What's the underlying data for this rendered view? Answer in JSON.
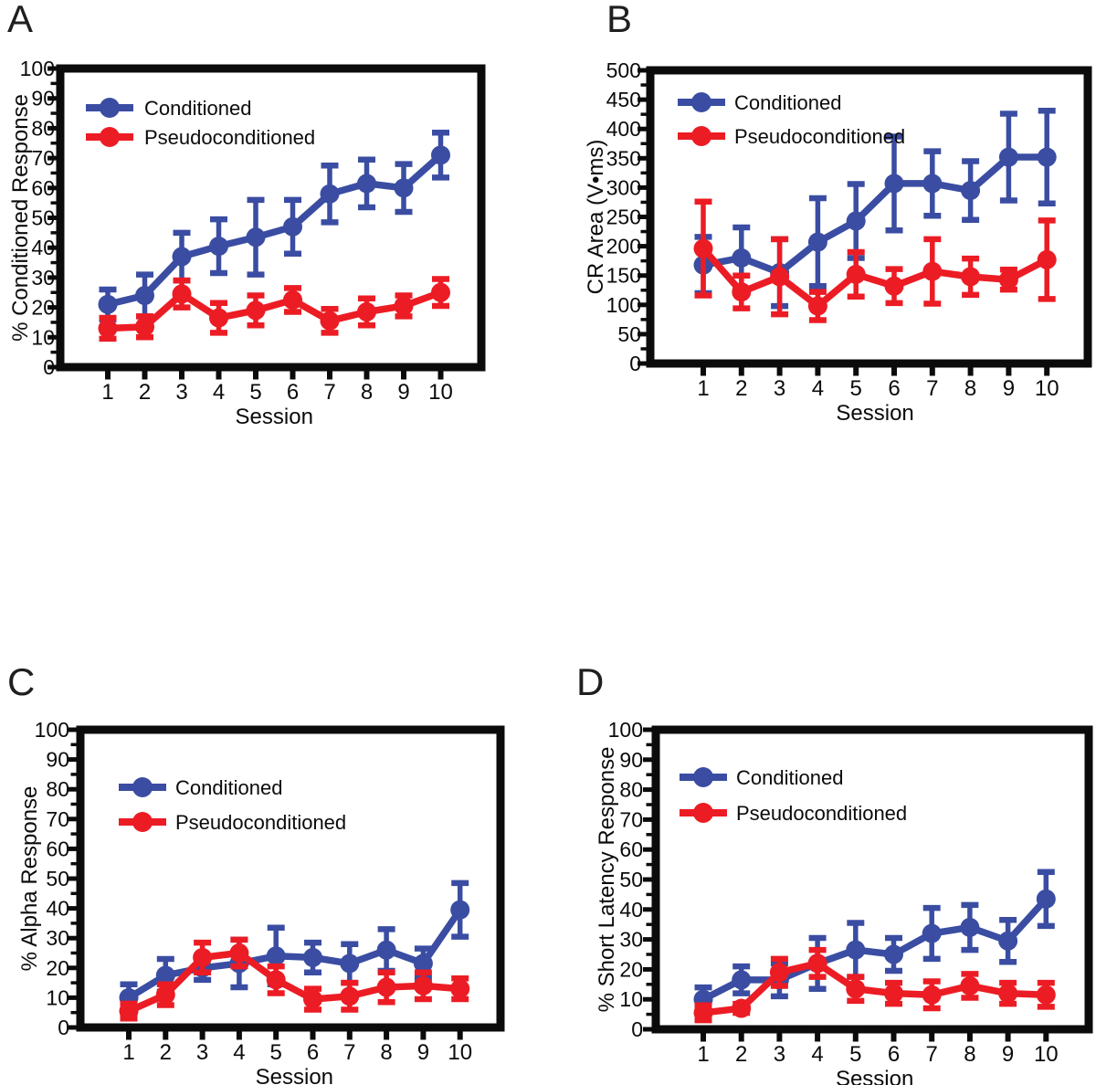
{
  "figure": {
    "panel_letters": [
      "A",
      "B",
      "C",
      "D"
    ],
    "colors": {
      "conditioned": "#3A4DA2",
      "pseudoconditioned": "#EC1C24",
      "ink": "#0B0B0B"
    }
  },
  "chart_data": [
    {
      "panel": "A",
      "type": "line",
      "title": "",
      "xlabel": "Session",
      "ylabel": "% Conditioned Response",
      "x": [
        1,
        2,
        3,
        4,
        5,
        6,
        7,
        8,
        9,
        10
      ],
      "ylim": [
        0,
        100
      ],
      "ytick_major": 10,
      "ytick_minor": 5,
      "grid": false,
      "legend_position": "top-left",
      "series": [
        {
          "name": "Conditioned",
          "color": "#3A4DA2",
          "values": [
            21,
            24,
            37,
            40.5,
            43.5,
            47,
            58,
            61.5,
            60,
            71
          ],
          "error": [
            5,
            7,
            8,
            9,
            12.5,
            9,
            9.5,
            8,
            8,
            7.5
          ]
        },
        {
          "name": "Pseudoconditioned",
          "color": "#EC1C24",
          "values": [
            13,
            13.5,
            24.5,
            16.5,
            19,
            22.5,
            15.5,
            18.5,
            20.5,
            25
          ],
          "error": [
            3.5,
            3.5,
            4.5,
            5,
            5,
            4,
            4,
            4.5,
            3.5,
            4.5
          ]
        }
      ]
    },
    {
      "panel": "B",
      "type": "line",
      "title": "",
      "xlabel": "Session",
      "ylabel": "CR Area (V•ms)",
      "x": [
        1,
        2,
        3,
        4,
        5,
        6,
        7,
        8,
        9,
        10
      ],
      "ylim": [
        0,
        500
      ],
      "ytick_major": 50,
      "ytick_minor": 25,
      "grid": false,
      "legend_position": "top-left",
      "series": [
        {
          "name": "Conditioned",
          "color": "#3A4DA2",
          "values": [
            168,
            180,
            155,
            207,
            243,
            307,
            307,
            295,
            352,
            352
          ],
          "error": [
            48,
            52,
            57,
            75,
            63,
            80,
            55,
            50,
            74,
            79
          ]
        },
        {
          "name": "Pseudoconditioned",
          "color": "#EC1C24",
          "values": [
            196,
            122,
            148,
            98,
            152,
            132,
            157,
            148,
            143,
            177
          ],
          "error": [
            80,
            28,
            64,
            24,
            38,
            29,
            55,
            31,
            17,
            67
          ]
        }
      ]
    },
    {
      "panel": "C",
      "type": "line",
      "title": "",
      "xlabel": "Session",
      "ylabel": "% Alpha Response",
      "x": [
        1,
        2,
        3,
        4,
        5,
        6,
        7,
        8,
        9,
        10
      ],
      "ylim": [
        0,
        100
      ],
      "ytick_major": 10,
      "ytick_minor": 5,
      "grid": false,
      "legend_position": "top-left",
      "series": [
        {
          "name": "Conditioned",
          "color": "#3A4DA2",
          "values": [
            10,
            17.5,
            20,
            21.5,
            24,
            23.5,
            21.5,
            26,
            21.5,
            39.5
          ],
          "error": [
            4.5,
            5.5,
            4,
            8,
            9.5,
            5,
            6.5,
            7,
            5,
            9
          ]
        },
        {
          "name": "Pseudoconditioned",
          "color": "#EC1C24",
          "values": [
            5.5,
            11,
            23.5,
            25,
            16,
            9.5,
            10.5,
            13.5,
            14,
            13
          ],
          "error": [
            2.5,
            3.5,
            5,
            4.5,
            4.5,
            3.5,
            4.5,
            5,
            4.5,
            3.5
          ]
        }
      ]
    },
    {
      "panel": "D",
      "type": "line",
      "title": "",
      "xlabel": "Session",
      "ylabel": "% Short Latency Response",
      "x": [
        1,
        2,
        3,
        4,
        5,
        6,
        7,
        8,
        9,
        10
      ],
      "ylim": [
        0,
        100
      ],
      "ytick_major": 10,
      "ytick_minor": 5,
      "grid": false,
      "legend_position": "top-left",
      "series": [
        {
          "name": "Conditioned",
          "color": "#3A4DA2",
          "values": [
            10,
            16.5,
            16.5,
            22,
            26.5,
            25,
            32,
            34,
            29.5,
            43.5
          ],
          "error": [
            4,
            4.5,
            5.5,
            8.5,
            9,
            5.5,
            8.5,
            7.5,
            7,
            9
          ]
        },
        {
          "name": "Pseudoconditioned",
          "color": "#EC1C24",
          "values": [
            5.5,
            7,
            19,
            22,
            13.5,
            12,
            11.5,
            14.5,
            12,
            11.5
          ],
          "error": [
            2.5,
            1.5,
            4.5,
            4.5,
            4,
            3.5,
            4.5,
            4,
            3.5,
            4
          ]
        }
      ]
    }
  ]
}
